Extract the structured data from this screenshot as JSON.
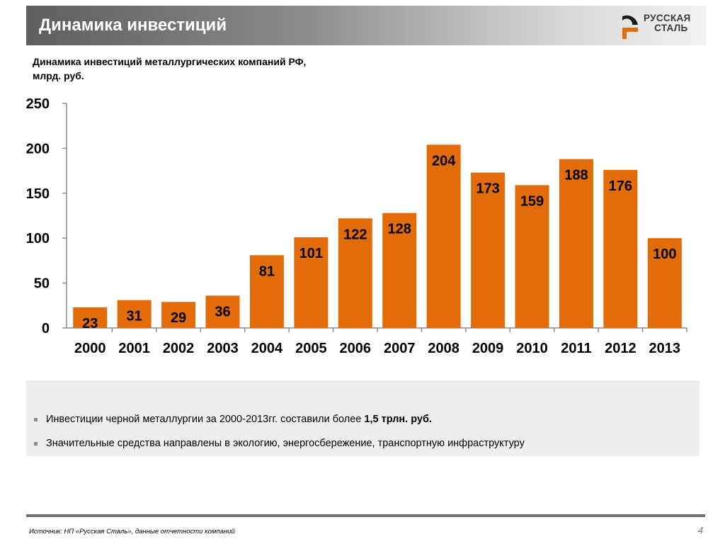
{
  "header": {
    "title": "Динамика инвестиций"
  },
  "logo": {
    "line1": "РУССКАЯ",
    "line2": "СТАЛЬ"
  },
  "subtitle": "Динамика инвестиций металлургических компаний РФ, млрд. руб.",
  "chart_data": {
    "type": "bar",
    "categories": [
      "2000",
      "2001",
      "2002",
      "2003",
      "2004",
      "2005",
      "2006",
      "2007",
      "2008",
      "2009",
      "2010",
      "2011",
      "2012",
      "2013"
    ],
    "values": [
      23,
      31,
      29,
      36,
      81,
      101,
      122,
      128,
      204,
      173,
      159,
      188,
      176,
      100
    ],
    "ylim": [
      0,
      250
    ],
    "yticks": [
      0,
      50,
      100,
      150,
      200,
      250
    ],
    "grid": false,
    "bar_color": "#e26b0a",
    "data_labels": true
  },
  "bullets": [
    {
      "text": "Инвестиции черной металлургии за 2000-2013гг. составили более ",
      "bold": "1,5 трлн. руб."
    },
    {
      "text": "Значительные средства направлены в экологию, энергосбережение, транспортную инфраструктуру",
      "bold": ""
    }
  ],
  "footer": {
    "source": "Источник: НП «Русская Сталь», данные отчетности компаний",
    "page": "4"
  },
  "colors": {
    "accent": "#e26b0a",
    "header_dark": "#5e5e5e"
  }
}
